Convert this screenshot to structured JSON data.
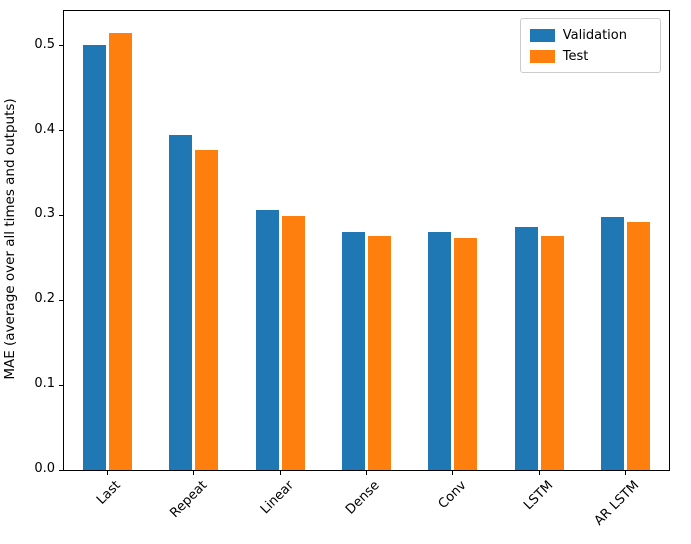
{
  "chart_data": {
    "type": "bar",
    "categories": [
      "Last",
      "Repeat",
      "Linear",
      "Dense",
      "Conv",
      "LSTM",
      "AR LSTM"
    ],
    "series": [
      {
        "name": "Validation",
        "color": "#1f77b4",
        "values": [
          0.501,
          0.395,
          0.306,
          0.28,
          0.28,
          0.286,
          0.298
        ]
      },
      {
        "name": "Test",
        "color": "#ff7f0e",
        "values": [
          0.515,
          0.377,
          0.299,
          0.276,
          0.274,
          0.276,
          0.292
        ]
      }
    ],
    "title": "",
    "xlabel": "",
    "ylabel": "MAE (average over all times and outputs)",
    "ylim": [
      0,
      0.541
    ],
    "yticks": [
      0.0,
      0.1,
      0.2,
      0.3,
      0.4,
      0.5
    ],
    "grid": false,
    "legend_position": "upper right",
    "background_color": "#ffffff",
    "spine_color": "#000000"
  }
}
